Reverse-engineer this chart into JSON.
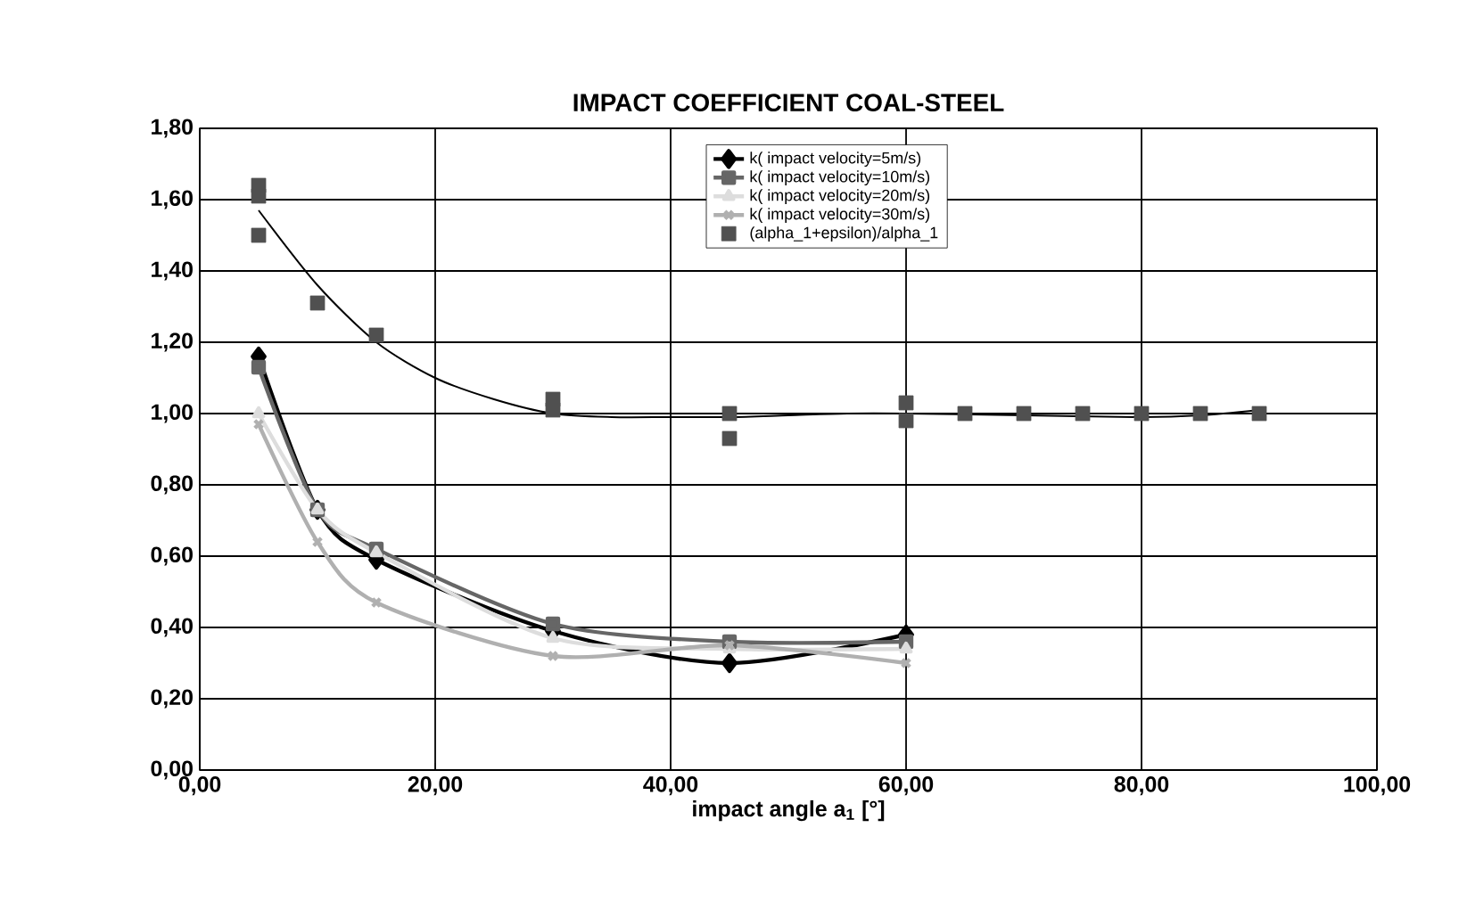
{
  "chart_data": {
    "type": "line",
    "title": "IMPACT COEFFICIENT COAL-STEEL",
    "xlabel": "impact angle a$_{1}$ [°]",
    "x": [
      5,
      10,
      15,
      30,
      45,
      60
    ],
    "xlim": [
      0,
      100
    ],
    "xticks": [
      {
        "value": 0,
        "label": "0,00"
      },
      {
        "value": 20,
        "label": "20,00"
      },
      {
        "value": 40,
        "label": "40,00"
      },
      {
        "value": 60,
        "label": "60,00"
      },
      {
        "value": 80,
        "label": "80,00"
      },
      {
        "value": 100,
        "label": "100,00"
      }
    ],
    "ylim": [
      0,
      1.8
    ],
    "yticks": [
      {
        "value": 0,
        "label": "0,00"
      },
      {
        "value": 0.2,
        "label": "0,20"
      },
      {
        "value": 0.4,
        "label": "0,40"
      },
      {
        "value": 0.6,
        "label": "0,60"
      },
      {
        "value": 0.8,
        "label": "0,80"
      },
      {
        "value": 1.0,
        "label": "1,00"
      },
      {
        "value": 1.2,
        "label": "1,20"
      },
      {
        "value": 1.4,
        "label": "1,40"
      },
      {
        "value": 1.6,
        "label": "1,60"
      },
      {
        "value": 1.8,
        "label": "1,80"
      }
    ],
    "grid": true,
    "legend": "top right",
    "series": [
      {
        "name": "k( impact velocity=5m/s)",
        "color": "#000000",
        "marker": "diamond",
        "values": [
          1.16,
          0.73,
          0.59,
          0.39,
          0.3,
          0.38
        ]
      },
      {
        "name": "k( impact velocity=10m/s)",
        "color": "#666666",
        "marker": "square",
        "values": [
          1.13,
          0.73,
          0.62,
          0.41,
          0.36,
          0.36
        ]
      },
      {
        "name": "k( impact velocity=20m/s)",
        "color": "#dddddd",
        "marker": "triangle",
        "values": [
          1.0,
          0.73,
          0.61,
          0.37,
          0.34,
          0.34
        ]
      },
      {
        "name": "k( impact velocity=30m/s)",
        "color": "#b0b0b0",
        "marker": "cross",
        "values": [
          0.97,
          0.64,
          0.47,
          0.32,
          0.35,
          0.3
        ]
      },
      {
        "name": "(alpha_1+epsilon)/alpha_1",
        "type": "scatter",
        "color": "#505050",
        "marker": "square",
        "x": [
          5,
          5,
          5,
          10,
          15,
          30,
          30,
          45,
          45,
          60,
          60,
          65,
          70,
          75,
          80,
          85,
          90
        ],
        "values": [
          1.64,
          1.61,
          1.5,
          1.31,
          1.22,
          1.04,
          1.01,
          1.0,
          0.93,
          1.03,
          0.98,
          1.0,
          1.0,
          1.0,
          1.0,
          1.0,
          1.0
        ]
      },
      {
        "type": "line",
        "color": "#000000",
        "marker": "none",
        "x": [
          5,
          10,
          15,
          20,
          25,
          30,
          35,
          40,
          45,
          50,
          55,
          60,
          70,
          80,
          85,
          90
        ],
        "values": [
          1.57,
          1.36,
          1.2,
          1.1,
          1.04,
          1.0,
          0.99,
          0.99,
          0.99,
          0.995,
          1.0,
          1.0,
          0.995,
          0.99,
          0.995,
          1.01
        ]
      }
    ]
  }
}
